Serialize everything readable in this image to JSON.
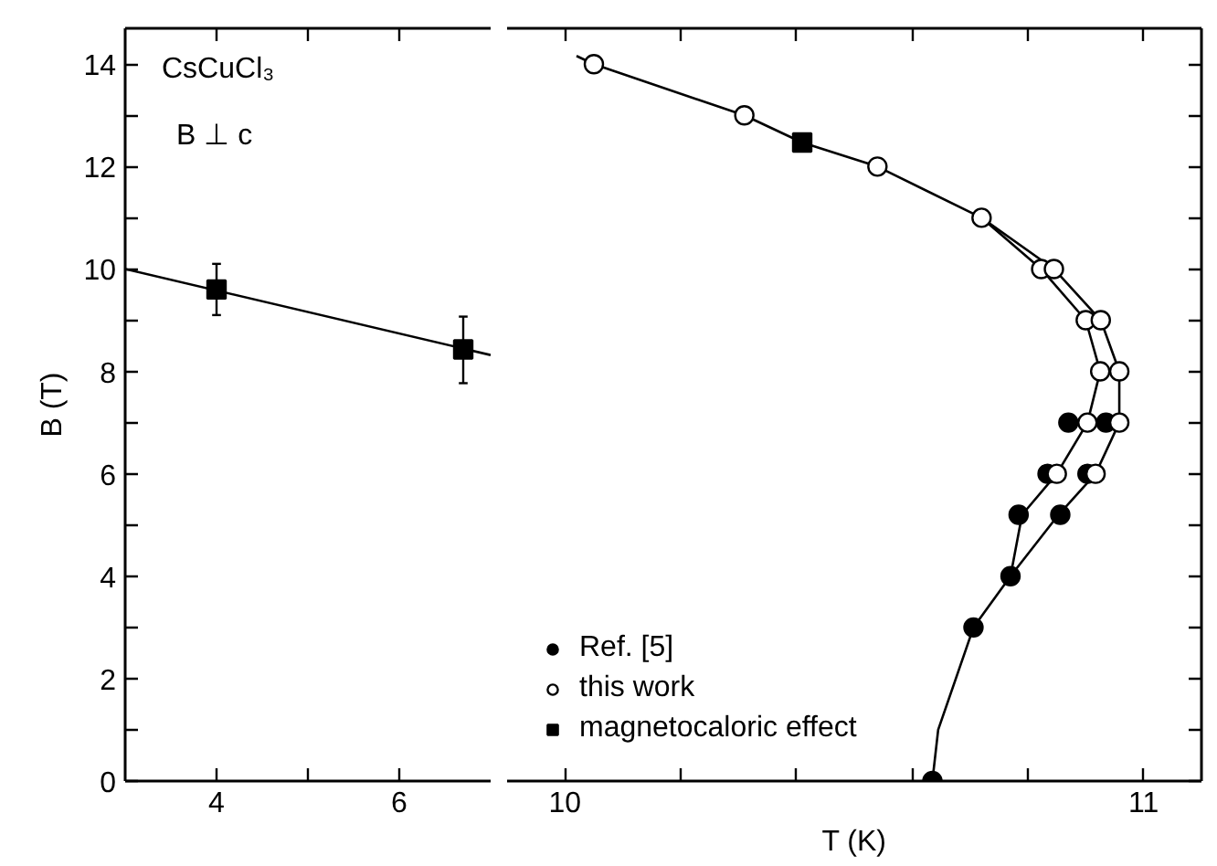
{
  "chart_data": [
    {
      "type": "scatter",
      "ylabel": "B (T)",
      "annotations": [
        "CsCuCl₃",
        "B ⊥ c"
      ],
      "xlim": [
        3,
        7
      ],
      "xticks": [
        4,
        {
          "value": 5,
          "label": null
        },
        6
      ],
      "ylim": [
        0,
        14.7
      ],
      "yticks": [
        0,
        {
          "value": 1,
          "label": null
        },
        2,
        {
          "value": 3,
          "label": null
        },
        4,
        {
          "value": 5,
          "label": null
        },
        6,
        {
          "value": 7,
          "label": null
        },
        8,
        {
          "value": 9,
          "label": null
        },
        10,
        {
          "value": 11,
          "label": null
        },
        12,
        {
          "value": 13,
          "label": null
        },
        14
      ],
      "series": [
        {
          "type": "line",
          "marker": "none",
          "color": "#000000",
          "x": [
            3,
            7
          ],
          "values": [
            10.0,
            8.32
          ]
        },
        {
          "marker": "square",
          "color": "#000000",
          "x": [
            4,
            6.7
          ],
          "values": [
            9.6,
            8.43
          ],
          "errors": [
            [
              9.1,
              10.1
            ],
            [
              7.77,
              9.07
            ]
          ]
        }
      ]
    },
    {
      "type": "scatter",
      "xlabel": "T (K)",
      "legend": "bottom left",
      "tick_labels": "x",
      "xlim": [
        9.9,
        11.1
      ],
      "xticks": [
        10,
        {
          "value": 10.2,
          "label": null
        },
        {
          "value": 10.4,
          "label": null
        },
        {
          "value": 10.6,
          "label": null
        },
        {
          "value": 10.8,
          "label": null
        },
        11
      ],
      "ylim": [
        0,
        14.7
      ],
      "yticks": [
        0,
        {
          "value": 1,
          "label": null
        },
        2,
        {
          "value": 3,
          "label": null
        },
        4,
        {
          "value": 5,
          "label": null
        },
        6,
        {
          "value": 7,
          "label": null
        },
        8,
        {
          "value": 9,
          "label": null
        },
        10,
        {
          "value": 11,
          "label": null
        },
        12,
        {
          "value": 13,
          "label": null
        },
        14
      ],
      "series": [
        {
          "type": "line",
          "marker": "none",
          "color": "#000000",
          "x": [
            10.635,
            10.645,
            10.706,
            10.77,
            10.79,
            10.85,
            10.903,
            10.925,
            10.9,
            10.823,
            10.72,
            10.54,
            10.41,
            10.31,
            10.05,
            10.02
          ],
          "values": [
            0,
            1.0,
            3,
            4,
            5.2,
            6,
            7,
            8,
            9,
            10,
            11,
            12,
            12.47,
            13,
            14,
            14.16
          ]
        },
        {
          "type": "line",
          "marker": "none",
          "color": "#000000",
          "x": [
            10.77,
            10.853,
            10.917,
            10.958,
            10.958,
            10.926,
            10.845,
            10.72
          ],
          "values": [
            4,
            5.2,
            6,
            7,
            8,
            9,
            10,
            11
          ]
        },
        {
          "name": "Ref. [5]",
          "marker": "circle",
          "color": "#000000",
          "x": [
            10.635,
            10.706,
            10.77,
            10.784,
            10.856,
            10.834,
            10.903,
            10.87,
            10.935
          ],
          "values": [
            0,
            3,
            4,
            5.2,
            5.2,
            6,
            6,
            7,
            7
          ]
        },
        {
          "name": "this work",
          "marker": "circle",
          "color": "#ffffff",
          "x": [
            10.05,
            10.31,
            10.54,
            10.72,
            10.823,
            10.845,
            10.9,
            10.926,
            10.925,
            10.958,
            10.903,
            10.958,
            10.85,
            10.917
          ],
          "values": [
            14,
            13,
            12,
            11,
            10,
            10,
            9,
            9,
            8,
            8,
            7,
            7,
            6,
            6
          ]
        },
        {
          "name": "magnetocaloric effect",
          "marker": "square",
          "color": "#000000",
          "x": [
            10.41
          ],
          "values": [
            12.47
          ]
        }
      ]
    }
  ]
}
